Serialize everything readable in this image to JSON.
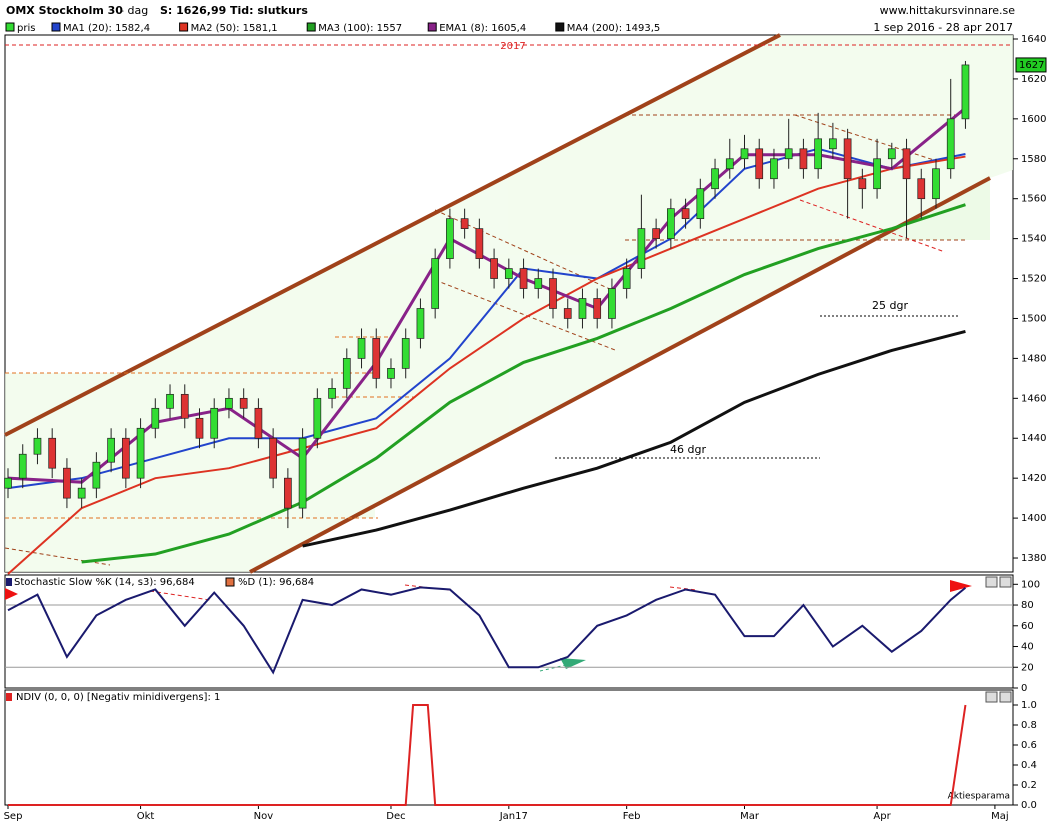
{
  "header": {
    "title": "OMX Stockholm 30",
    "period": "- dag",
    "last": "S: 1626,99",
    "basis": "Tid: slutkurs",
    "site": "www.hittakursvinnare.se",
    "range": "1 sep 2016 - 28 apr 2017"
  },
  "chart_data": [
    {
      "type": "candlestick",
      "legend_label": "pris",
      "categories": [
        "Sep",
        null,
        null,
        null,
        null,
        null,
        null,
        null,
        null,
        "Okt",
        null,
        null,
        null,
        null,
        null,
        null,
        null,
        "Nov",
        null,
        null,
        null,
        null,
        null,
        null,
        null,
        null,
        "Dec",
        null,
        null,
        null,
        null,
        null,
        null,
        null,
        "Jan17",
        null,
        null,
        null,
        null,
        null,
        null,
        null,
        "Feb",
        null,
        null,
        null,
        null,
        null,
        null,
        null,
        "Mar",
        null,
        null,
        null,
        null,
        null,
        null,
        null,
        null,
        "Apr",
        null,
        null,
        null,
        null,
        null,
        null,
        null,
        "Maj"
      ],
      "open": [
        1415,
        1420,
        1432,
        1440,
        1425,
        1410,
        1415,
        1428,
        1440,
        1420,
        1445,
        1455,
        1462,
        1450,
        1440,
        1455,
        1460,
        1455,
        1440,
        1420,
        1405,
        1440,
        1460,
        1465,
        1480,
        1490,
        1470,
        1475,
        1490,
        1505,
        1530,
        1550,
        1545,
        1530,
        1520,
        1525,
        1515,
        1520,
        1505,
        1500,
        1510,
        1500,
        1515,
        1525,
        1545,
        1540,
        1555,
        1550,
        1565,
        1575,
        1580,
        1585,
        1570,
        1580,
        1585,
        1575,
        1585,
        1590,
        1570,
        1565,
        1580,
        1585,
        1570,
        1560,
        1575,
        1600,
        null,
        null
      ],
      "high": [
        1425,
        1437,
        1445,
        1445,
        1430,
        1420,
        1433,
        1445,
        1445,
        1450,
        1460,
        1467,
        1467,
        1455,
        1460,
        1465,
        1465,
        1460,
        1445,
        1425,
        1445,
        1465,
        1470,
        1485,
        1495,
        1495,
        1480,
        1495,
        1510,
        1535,
        1555,
        1555,
        1550,
        1535,
        1530,
        1530,
        1525,
        1525,
        1510,
        1515,
        1515,
        1520,
        1530,
        1562,
        1550,
        1560,
        1560,
        1570,
        1580,
        1590,
        1592,
        1590,
        1585,
        1600,
        1590,
        1603,
        1598,
        1595,
        1575,
        1590,
        1588,
        1590,
        1575,
        1580,
        1620,
        1629,
        null,
        null
      ],
      "low": [
        1410,
        1415,
        1427,
        1420,
        1405,
        1405,
        1410,
        1423,
        1415,
        1415,
        1440,
        1450,
        1445,
        1435,
        1435,
        1450,
        1450,
        1435,
        1415,
        1395,
        1400,
        1435,
        1455,
        1460,
        1475,
        1465,
        1465,
        1470,
        1485,
        1500,
        1525,
        1540,
        1525,
        1515,
        1515,
        1510,
        1510,
        1500,
        1495,
        1495,
        1495,
        1495,
        1510,
        1520,
        1535,
        1535,
        1545,
        1545,
        1560,
        1570,
        1575,
        1565,
        1565,
        1575,
        1570,
        1570,
        1580,
        1550,
        1555,
        1560,
        1575,
        1540,
        1550,
        1555,
        1570,
        1595,
        null,
        null
      ],
      "close": [
        1420,
        1432,
        1440,
        1425,
        1410,
        1415,
        1428,
        1440,
        1420,
        1445,
        1455,
        1462,
        1450,
        1440,
        1455,
        1460,
        1455,
        1440,
        1420,
        1405,
        1440,
        1460,
        1465,
        1480,
        1490,
        1470,
        1475,
        1490,
        1505,
        1530,
        1550,
        1545,
        1530,
        1520,
        1525,
        1515,
        1520,
        1505,
        1500,
        1510,
        1500,
        1515,
        1525,
        1545,
        1540,
        1555,
        1550,
        1565,
        1575,
        1580,
        1585,
        1570,
        1580,
        1585,
        1575,
        1590,
        1590,
        1570,
        1565,
        1580,
        1585,
        1570,
        1560,
        1575,
        1600,
        1627,
        null,
        null
      ],
      "up_color": "#33dd33",
      "down_color": "#dd3333",
      "last_price": 1627,
      "series": [
        {
          "name": "MA1 (20): 1582,4",
          "color": "#2244cc",
          "x": [
            0,
            5,
            10,
            15,
            20,
            25,
            30,
            35,
            40,
            45,
            50,
            55,
            60,
            65
          ],
          "values": [
            1415,
            1420,
            1430,
            1440,
            1440,
            1450,
            1480,
            1525,
            1520,
            1540,
            1575,
            1585,
            1575,
            1582.4
          ]
        },
        {
          "name": "MA2 (50): 1581,1",
          "color": "#dd3322",
          "x": [
            0,
            5,
            10,
            15,
            20,
            25,
            30,
            35,
            40,
            45,
            50,
            55,
            60,
            65
          ],
          "values": [
            1372,
            1405,
            1420,
            1425,
            1435,
            1445,
            1475,
            1500,
            1520,
            1535,
            1550,
            1565,
            1575,
            1581.1
          ]
        },
        {
          "name": "MA3 (100): 1557",
          "color": "#22a022",
          "x": [
            0,
            5,
            10,
            15,
            20,
            25,
            30,
            35,
            40,
            45,
            50,
            55,
            60,
            65
          ],
          "values": [
            null,
            1378,
            1382,
            1392,
            1408,
            1430,
            1458,
            1478,
            1490,
            1505,
            1522,
            1535,
            1545,
            1557
          ]
        },
        {
          "name": "EMA1 (8): 1605,4",
          "color": "#882288",
          "x": [
            0,
            5,
            10,
            15,
            20,
            25,
            30,
            35,
            40,
            45,
            50,
            55,
            60,
            65
          ],
          "values": [
            1420,
            1418,
            1448,
            1455,
            1430,
            1478,
            1540,
            1520,
            1505,
            1550,
            1582,
            1582,
            1575,
            1605.4
          ]
        },
        {
          "name": "MA4 (200): 1493,5",
          "color": "#111111",
          "x": [
            0,
            5,
            10,
            15,
            20,
            25,
            30,
            35,
            40,
            45,
            50,
            55,
            60,
            65
          ],
          "values": [
            null,
            null,
            null,
            null,
            1386,
            1394,
            1404,
            1415,
            1425,
            1438,
            1458,
            1472,
            1484,
            1493.5
          ]
        }
      ],
      "ylim": [
        1373,
        1642
      ],
      "yticks": [
        1380,
        1400,
        1420,
        1440,
        1460,
        1480,
        1500,
        1520,
        1540,
        1560,
        1580,
        1600,
        1620,
        1640
      ],
      "annotations": [
        "2017",
        "25 dgr",
        "46 dgr"
      ]
    },
    {
      "type": "line",
      "title": "Stochastic Slow %K (14, s3): 96,684",
      "legend_label": "%D (1): 96,684",
      "series": [
        {
          "name": "%K",
          "color": "#1a1a6e",
          "x": [
            0,
            2,
            4,
            6,
            8,
            10,
            12,
            14,
            16,
            18,
            20,
            22,
            24,
            26,
            28,
            30,
            32,
            34,
            36,
            38,
            40,
            42,
            44,
            46,
            48,
            50,
            52,
            54,
            56,
            58,
            60,
            62,
            64,
            65
          ],
          "values": [
            75,
            90,
            30,
            70,
            85,
            95,
            60,
            92,
            60,
            15,
            85,
            80,
            95,
            90,
            97,
            95,
            70,
            20,
            20,
            30,
            60,
            70,
            85,
            95,
            90,
            50,
            50,
            80,
            40,
            60,
            35,
            55,
            85,
            96.684
          ]
        }
      ],
      "levels": [
        20,
        80
      ],
      "ylim": [
        0,
        108
      ],
      "yticks": [
        0,
        20,
        40,
        60,
        80,
        100
      ]
    },
    {
      "type": "line",
      "title": "NDIV (0, 0, 0) [Negativ minidivergens]: 1",
      "credit": "Aktiesparama",
      "series": [
        {
          "name": "NDIV",
          "color": "#dd2222",
          "x": [
            0,
            27,
            27.5,
            28.5,
            29,
            64,
            65
          ],
          "values": [
            0,
            0,
            1,
            1,
            0,
            0,
            1
          ]
        }
      ],
      "ylim": [
        0,
        1.14
      ],
      "yticks": [
        {
          "value": 0,
          "label": "0.0"
        },
        0.2,
        0.4,
        0.6,
        0.8,
        {
          "value": 1,
          "label": "1.0"
        }
      ]
    }
  ]
}
